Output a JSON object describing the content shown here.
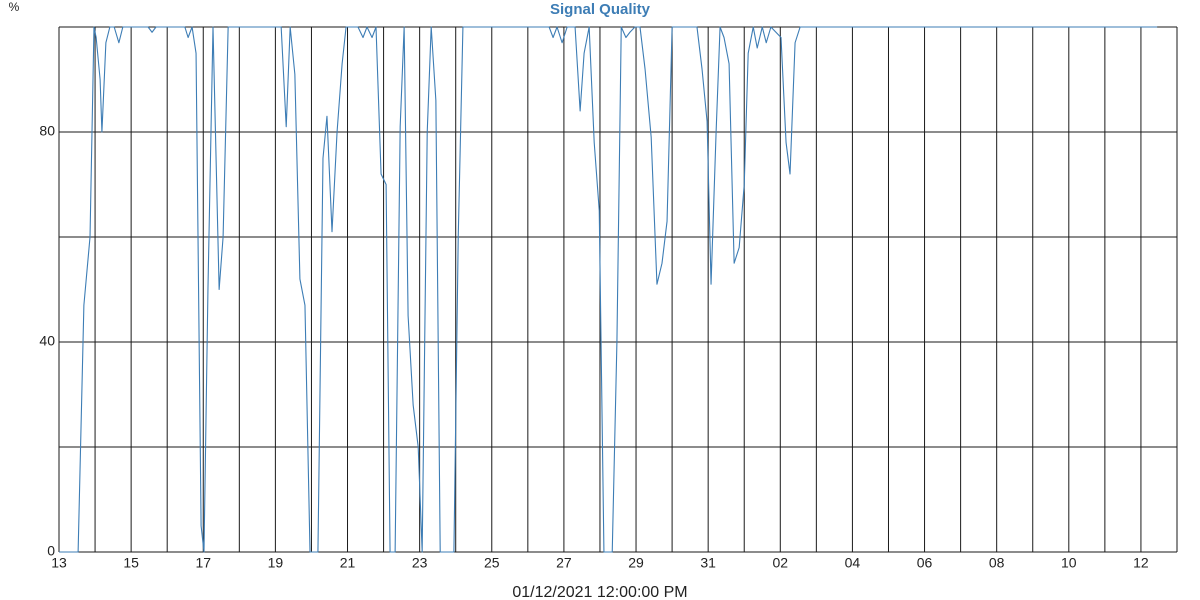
{
  "chart_data": {
    "type": "line",
    "title": "Signal Quality",
    "y_label": "%",
    "x_label": "01/12/2021 12:00:00 PM",
    "color": "#3d7db5",
    "x": [
      0.0,
      0.53,
      0.69,
      0.86,
      0.97,
      1.03,
      1.14,
      1.19,
      1.3,
      1.41,
      1.53,
      1.66,
      1.77,
      2.47,
      2.58,
      2.69,
      3.49,
      3.58,
      3.69,
      3.8,
      3.94,
      4.02,
      4.13,
      4.27,
      4.44,
      4.55,
      4.69,
      6.16,
      6.3,
      6.41,
      6.54,
      6.68,
      6.82,
      6.96,
      7.18,
      7.32,
      7.43,
      7.57,
      7.71,
      7.85,
      7.96,
      8.29,
      8.43,
      8.54,
      8.68,
      8.79,
      8.93,
      9.07,
      9.18,
      9.32,
      9.46,
      9.57,
      9.68,
      9.82,
      9.96,
      10.07,
      10.21,
      10.32,
      10.45,
      10.57,
      10.95,
      11.07,
      11.2,
      13.59,
      13.7,
      13.81,
      13.95,
      14.09,
      14.31,
      14.45,
      14.56,
      14.7,
      14.84,
      14.98,
      15.11,
      15.34,
      15.47,
      15.59,
      15.72,
      15.83,
      15.97,
      16.11,
      16.25,
      16.42,
      16.58,
      16.72,
      16.86,
      17.0,
      17.69,
      17.83,
      17.97,
      18.08,
      18.22,
      18.33,
      18.44,
      18.58,
      18.72,
      18.86,
      19.0,
      19.11,
      19.25,
      19.36,
      19.5,
      19.61,
      19.74,
      20.02,
      20.16,
      20.27,
      20.41,
      20.55,
      30.45
    ],
    "values": [
      0,
      0,
      47,
      60,
      100,
      98,
      90,
      80,
      97,
      100,
      100,
      97,
      100,
      100,
      99,
      100,
      100,
      98,
      100,
      95,
      5,
      0,
      50,
      100,
      50,
      60,
      100,
      100,
      81,
      100,
      91,
      52,
      47,
      0,
      0,
      75,
      83,
      61,
      80,
      93,
      100,
      100,
      98,
      100,
      98,
      100,
      72,
      70,
      0,
      0,
      81,
      100,
      45,
      28,
      20,
      0,
      80,
      100,
      86,
      0,
      0,
      60,
      100,
      100,
      98,
      100,
      97,
      100,
      100,
      84,
      95,
      100,
      78,
      65,
      0,
      0,
      40,
      100,
      98,
      99,
      100,
      100,
      92,
      79,
      51,
      55,
      63,
      100,
      100,
      92,
      82,
      51,
      80,
      100,
      98,
      93,
      55,
      58,
      70,
      95,
      100,
      96,
      100,
      97,
      100,
      98,
      78,
      72,
      97,
      100,
      100
    ],
    "xlim": [
      0,
      31
    ],
    "ylim": [
      0,
      100
    ],
    "xticks": [
      {
        "value": 0,
        "label": "13"
      },
      {
        "value": 2,
        "label": "15"
      },
      {
        "value": 4,
        "label": "17"
      },
      {
        "value": 6,
        "label": "19"
      },
      {
        "value": 8,
        "label": "21"
      },
      {
        "value": 10,
        "label": "23"
      },
      {
        "value": 12,
        "label": "25"
      },
      {
        "value": 14,
        "label": "27"
      },
      {
        "value": 16,
        "label": "29"
      },
      {
        "value": 18,
        "label": "31"
      },
      {
        "value": 20,
        "label": "02"
      },
      {
        "value": 22,
        "label": "04"
      },
      {
        "value": 24,
        "label": "06"
      },
      {
        "value": 26,
        "label": "08"
      },
      {
        "value": 28,
        "label": "10"
      },
      {
        "value": 30,
        "label": "12"
      }
    ],
    "xminor": [
      1,
      3,
      5,
      7,
      9,
      11,
      13,
      15,
      17,
      19,
      21,
      23,
      25,
      27,
      29,
      31
    ],
    "yticks": [
      0,
      40,
      80
    ],
    "yminor": [
      20,
      60,
      100
    ],
    "grid": true
  }
}
